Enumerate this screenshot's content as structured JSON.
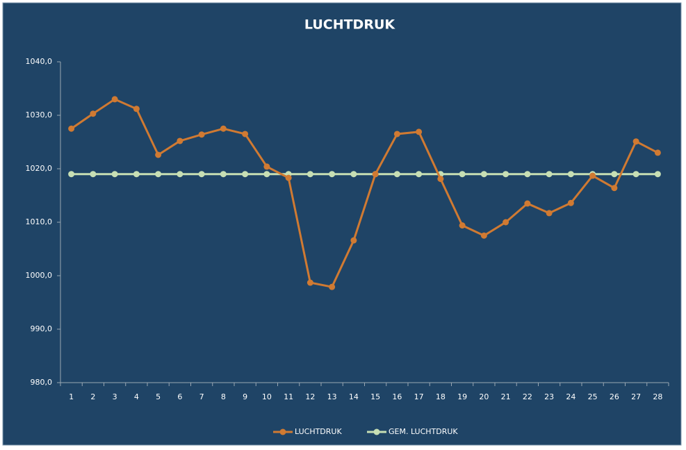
{
  "chart_data": {
    "type": "line",
    "title": "LUCHTDRUK",
    "categories": [
      "1",
      "2",
      "3",
      "4",
      "5",
      "6",
      "7",
      "8",
      "9",
      "10",
      "11",
      "12",
      "13",
      "14",
      "15",
      "16",
      "17",
      "18",
      "19",
      "20",
      "21",
      "22",
      "23",
      "24",
      "25",
      "26",
      "27",
      "28"
    ],
    "series": [
      {
        "name": "LUCHTDRUK",
        "color": "#d07a32",
        "values": [
          1027.5,
          1030.3,
          1033.0,
          1031.2,
          1022.6,
          1025.2,
          1026.4,
          1027.5,
          1026.5,
          1020.4,
          1018.3,
          998.7,
          997.9,
          1006.6,
          1019.0,
          1026.5,
          1026.9,
          1018.1,
          1009.4,
          1007.5,
          1010.0,
          1013.5,
          1011.7,
          1013.6,
          1018.7,
          1016.4,
          1025.1,
          1023.0
        ]
      },
      {
        "name": "GEM. LUCHTDRUK",
        "color": "#c7dfb4",
        "values": [
          1019,
          1019,
          1019,
          1019,
          1019,
          1019,
          1019,
          1019,
          1019,
          1019,
          1019,
          1019,
          1019,
          1019,
          1019,
          1019,
          1019,
          1019,
          1019,
          1019,
          1019,
          1019,
          1019,
          1019,
          1019,
          1019,
          1019,
          1019
        ]
      }
    ],
    "ylim": [
      980,
      1040
    ],
    "yticks": [
      {
        "value": 980,
        "label": "980,0"
      },
      {
        "value": 990,
        "label": "990,0"
      },
      {
        "value": 1000,
        "label": "1000,0"
      },
      {
        "value": 1010,
        "label": "1010,0"
      },
      {
        "value": 1020,
        "label": "1020,0"
      },
      {
        "value": 1030,
        "label": "1030,0"
      },
      {
        "value": 1040,
        "label": "1040,0"
      }
    ],
    "legend": "bottom"
  }
}
